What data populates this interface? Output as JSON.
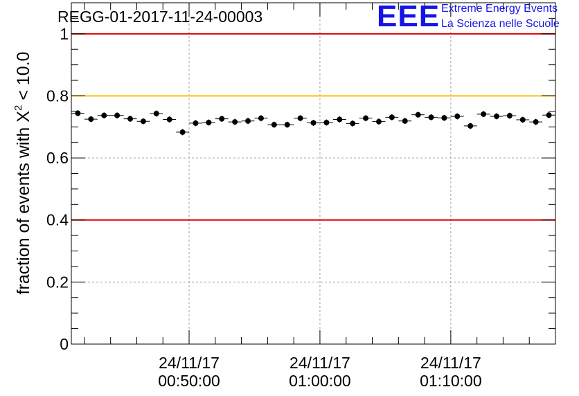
{
  "logo": {
    "mark": "EEE",
    "line1": "Extreme Energy Events",
    "line2": "La Scienza nelle Scuole"
  },
  "chart_data": {
    "type": "scatter",
    "title": "REGG-01-2017-11-24-00003",
    "xlabel": "",
    "ylabel_prefix": "fraction of events with ",
    "ylabel_symbol": "X",
    "ylabel_superscript": "2",
    "ylabel_suffix": " < 10.0",
    "xlim": [
      0,
      37
    ],
    "ylim": [
      0,
      1.1
    ],
    "yticks": [
      {
        "value": 0,
        "label": "0"
      },
      {
        "value": 0.2,
        "label": "0.2"
      },
      {
        "value": 0.4,
        "label": "0.4"
      },
      {
        "value": 0.6,
        "label": "0.6"
      },
      {
        "value": 0.8,
        "label": "0.8"
      },
      {
        "value": 1,
        "label": "1"
      }
    ],
    "xticks": [
      {
        "value": 9,
        "date": "24/11/17",
        "time": "00:50:00"
      },
      {
        "value": 19,
        "date": "24/11/17",
        "time": "01:00:00"
      },
      {
        "value": 29,
        "date": "24/11/17",
        "time": "01:10:00"
      }
    ],
    "reference_lines": [
      {
        "value": 1.0,
        "color": "#e00000"
      },
      {
        "value": 0.8,
        "color": "#ffc000"
      },
      {
        "value": 0.4,
        "color": "#e00000"
      }
    ],
    "grid": true,
    "series": [
      {
        "name": "fraction",
        "color": "#000000",
        "x": [
          0.5,
          1.5,
          2.5,
          3.5,
          4.5,
          5.5,
          6.5,
          7.5,
          8.5,
          9.5,
          10.5,
          11.5,
          12.5,
          13.5,
          14.5,
          15.5,
          16.5,
          17.5,
          18.5,
          19.5,
          20.5,
          21.5,
          22.5,
          23.5,
          24.5,
          25.5,
          26.5,
          27.5,
          28.5,
          29.5,
          30.5,
          31.5,
          32.5,
          33.5,
          34.5,
          35.5,
          36.5
        ],
        "values": [
          0.744,
          0.725,
          0.737,
          0.737,
          0.726,
          0.718,
          0.743,
          0.724,
          0.683,
          0.712,
          0.714,
          0.726,
          0.716,
          0.719,
          0.728,
          0.707,
          0.707,
          0.728,
          0.713,
          0.714,
          0.724,
          0.711,
          0.728,
          0.717,
          0.731,
          0.719,
          0.739,
          0.731,
          0.729,
          0.734,
          0.703,
          0.741,
          0.734,
          0.736,
          0.723,
          0.716,
          0.738
        ],
        "errors": [
          0.01,
          0.01,
          0.01,
          0.01,
          0.01,
          0.01,
          0.01,
          0.01,
          0.01,
          0.01,
          0.01,
          0.01,
          0.01,
          0.01,
          0.01,
          0.01,
          0.01,
          0.01,
          0.01,
          0.01,
          0.01,
          0.01,
          0.01,
          0.01,
          0.01,
          0.01,
          0.01,
          0.01,
          0.01,
          0.01,
          0.01,
          0.01,
          0.01,
          0.01,
          0.01,
          0.01,
          0.01
        ]
      }
    ]
  }
}
